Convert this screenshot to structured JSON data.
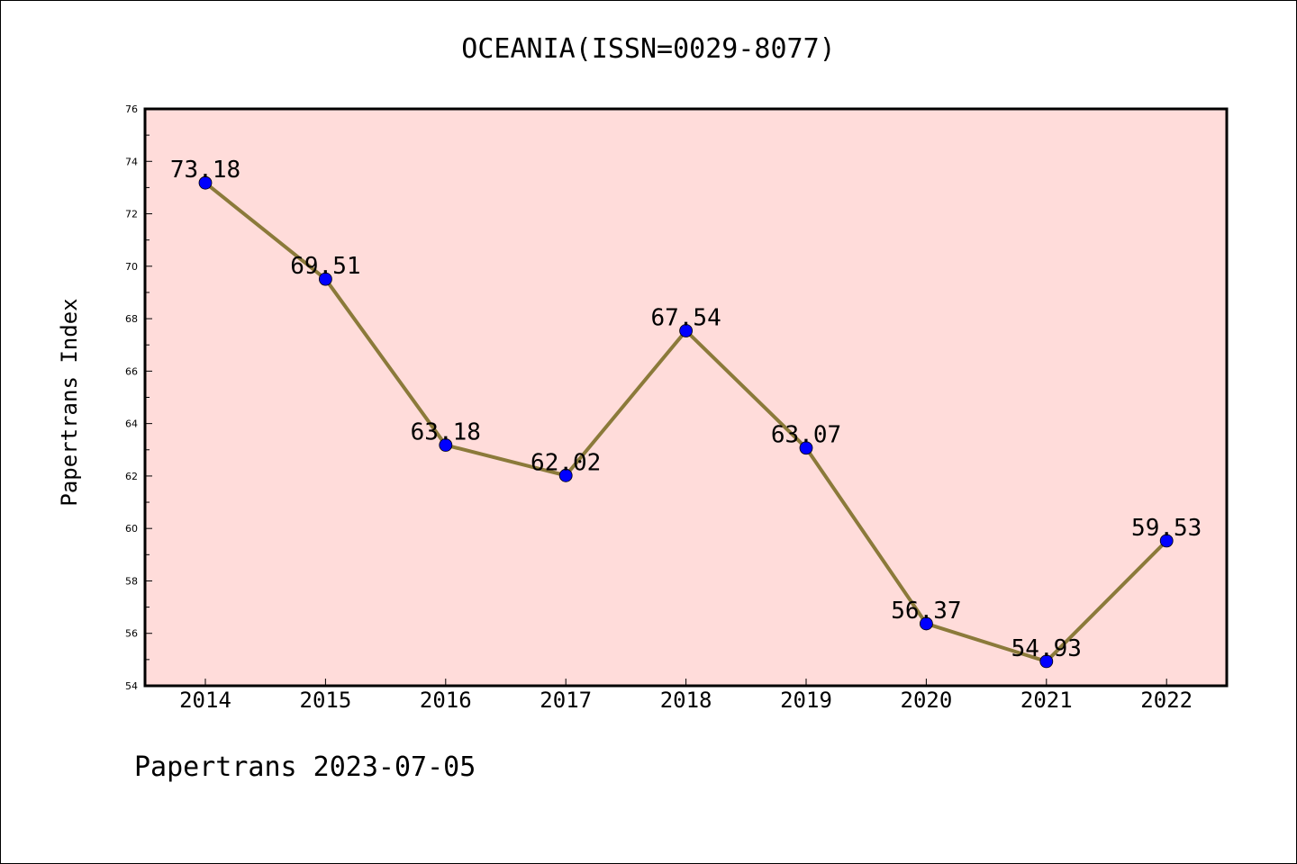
{
  "chart_data": {
    "type": "line",
    "title": "OCEANIA(ISSN=0029-8077)",
    "xlabel": "",
    "ylabel": "Papertrans Index",
    "categories": [
      "2014",
      "2015",
      "2016",
      "2017",
      "2018",
      "2019",
      "2020",
      "2021",
      "2022"
    ],
    "series": [
      {
        "values": [
          73.18,
          69.51,
          63.18,
          62.02,
          67.54,
          63.07,
          56.37,
          54.93,
          59.53
        ],
        "labels": [
          "73.18",
          "69.51",
          "63.18",
          "62.02",
          "67.54",
          "63.07",
          "56.37",
          "54.93",
          "59.53"
        ]
      }
    ],
    "ylim": [
      54,
      76
    ],
    "yticks": [
      "54",
      "56",
      "58",
      "60",
      "62",
      "64",
      "66",
      "68",
      "70",
      "72",
      "74",
      "76"
    ],
    "grid": false,
    "legend": "none",
    "colors": {
      "plot_background": "#ffdcda",
      "line": "#8b7a3a",
      "marker": "#0000ff"
    }
  },
  "footer": "Papertrans 2023-07-05"
}
